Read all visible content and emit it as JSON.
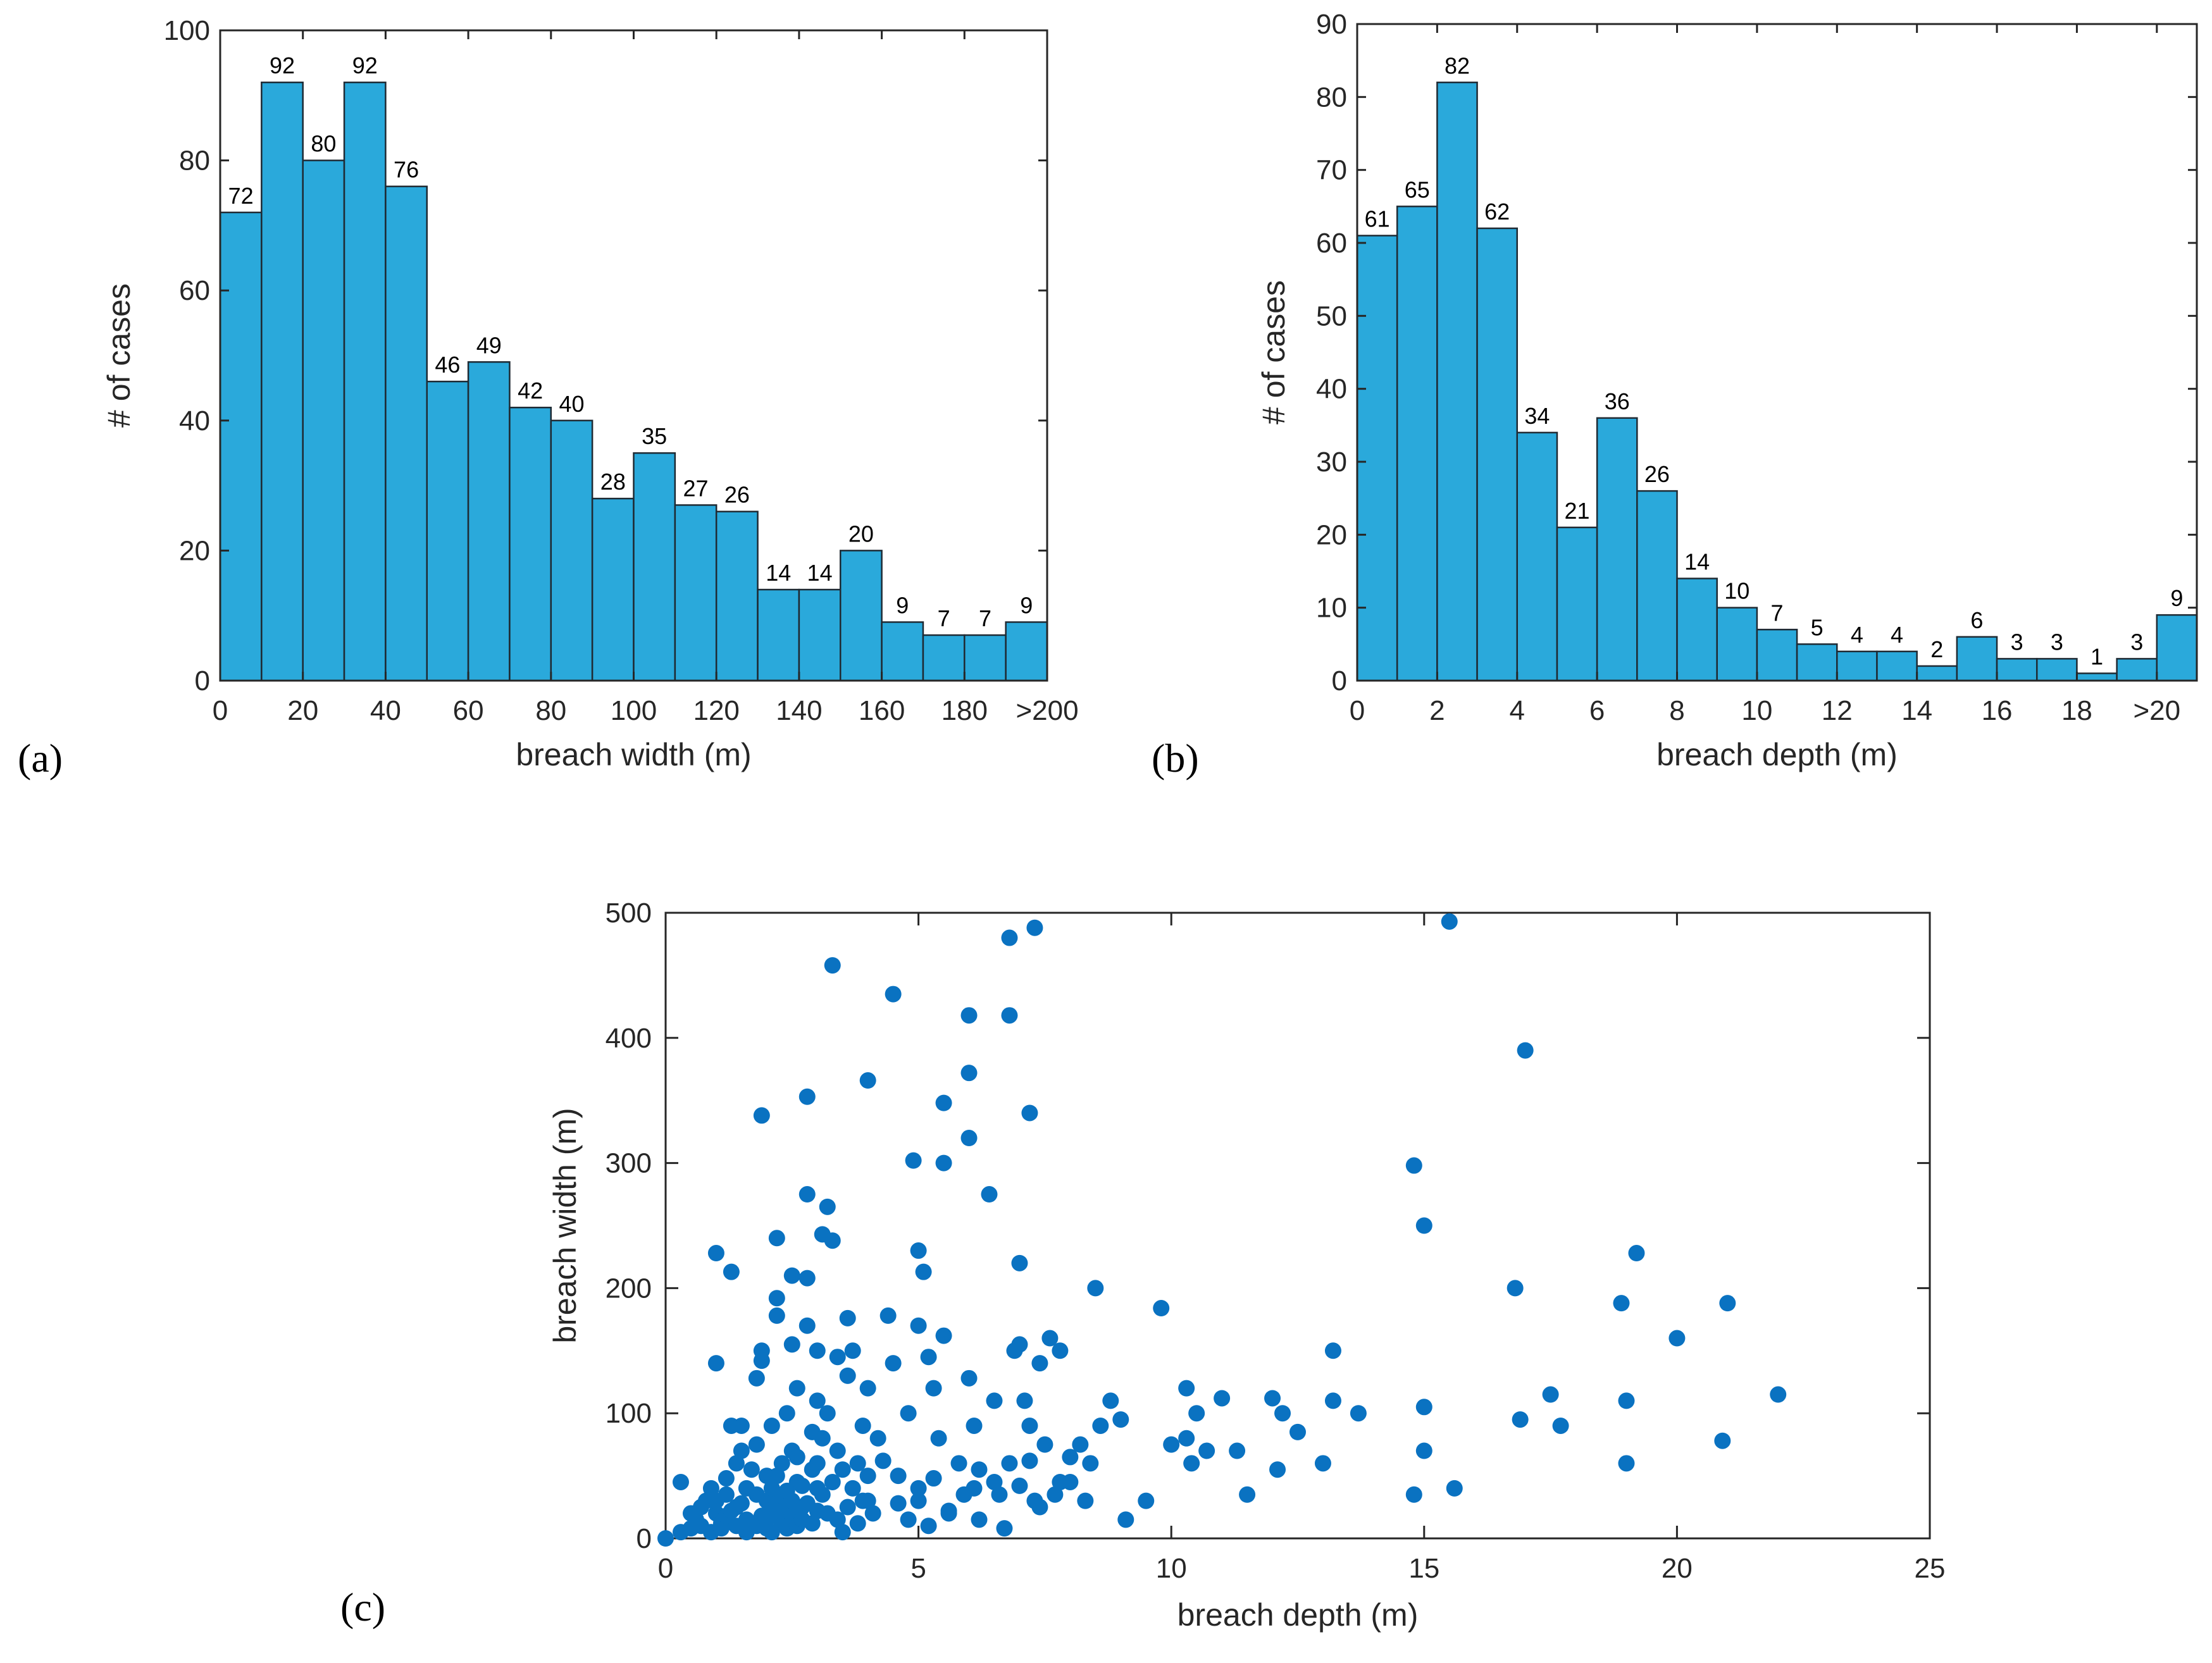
{
  "colors": {
    "bar_fill": "#2aa9db",
    "point_fill": "#0a72c1",
    "axis": "#262626"
  },
  "chart_data": [
    {
      "type": "bar",
      "panel_label": "(a)",
      "xlabel": "breach width (m)",
      "ylabel": "# of cases",
      "ylim": [
        0,
        100
      ],
      "yticks": [
        0,
        20,
        40,
        60,
        80,
        100
      ],
      "xtick_labels": [
        "0",
        "20",
        "40",
        "60",
        "80",
        "100",
        "120",
        "140",
        "160",
        "180",
        ">200"
      ],
      "bins": [
        "0-10",
        "10-20",
        "20-30",
        "30-40",
        "40-50",
        "50-60",
        "60-70",
        "70-80",
        "80-90",
        "90-100",
        "100-110",
        "110-120",
        "120-130",
        "130-140",
        "140-150",
        "150-160",
        "160-170",
        "170-180",
        "180-190",
        ">200"
      ],
      "values": [
        72,
        92,
        80,
        92,
        76,
        46,
        49,
        42,
        40,
        28,
        35,
        27,
        26,
        14,
        14,
        20,
        9,
        7,
        7,
        9
      ],
      "value_labels": [
        "72",
        "92",
        "80",
        "92",
        "76",
        "46",
        "49",
        "42",
        "40",
        "28",
        "35",
        "27",
        "26",
        "14",
        "14",
        "20",
        "9",
        "7",
        "7",
        "9"
      ]
    },
    {
      "type": "bar",
      "panel_label": "(b)",
      "xlabel": "breach depth (m)",
      "ylabel": "# of cases",
      "ylim": [
        0,
        90
      ],
      "yticks": [
        0,
        10,
        20,
        30,
        40,
        50,
        60,
        70,
        80,
        90
      ],
      "xtick_labels": [
        "0",
        "2",
        "4",
        "6",
        "8",
        "10",
        "12",
        "14",
        "16",
        "18",
        ">20"
      ],
      "bins": [
        "0-1",
        "1-2",
        "2-3",
        "3-4",
        "4-5",
        "5-6",
        "6-7",
        "7-8",
        "8-9",
        "9-10",
        "10-11",
        "11-12",
        "12-13",
        "13-14",
        "14-15",
        "15-16",
        "16-17",
        "17-18",
        "18-19",
        "19-20",
        ">20"
      ],
      "values": [
        61,
        65,
        82,
        62,
        34,
        21,
        36,
        26,
        14,
        10,
        7,
        5,
        4,
        4,
        2,
        6,
        3,
        3,
        1,
        3,
        9
      ],
      "value_labels": [
        "61",
        "65",
        "82",
        "62",
        "34",
        "21",
        "36",
        "26",
        "14",
        "10",
        "7",
        "5",
        "4",
        "4",
        "2",
        "6",
        "3",
        "3",
        "1",
        "3",
        "9"
      ]
    },
    {
      "type": "scatter",
      "panel_label": "(c)",
      "xlabel": "breach depth (m)",
      "ylabel": "breach width (m)",
      "xlim": [
        0,
        25
      ],
      "ylim": [
        0,
        500
      ],
      "xticks": [
        0,
        5,
        10,
        15,
        20,
        25
      ],
      "yticks": [
        0,
        100,
        200,
        300,
        400,
        500
      ],
      "points": [
        [
          0,
          0
        ],
        [
          0.3,
          45
        ],
        [
          0.3,
          5
        ],
        [
          0.5,
          8
        ],
        [
          0.6,
          15
        ],
        [
          0.7,
          10
        ],
        [
          0.8,
          30
        ],
        [
          0.9,
          5
        ],
        [
          1.0,
          228
        ],
        [
          1.0,
          140
        ],
        [
          1.0,
          20
        ],
        [
          1.1,
          12
        ],
        [
          1.2,
          35
        ],
        [
          1.2,
          48
        ],
        [
          1.3,
          213
        ],
        [
          1.3,
          90
        ],
        [
          1.4,
          25
        ],
        [
          1.4,
          60
        ],
        [
          1.5,
          70
        ],
        [
          1.5,
          90
        ],
        [
          1.6,
          15
        ],
        [
          1.6,
          40
        ],
        [
          1.7,
          55
        ],
        [
          1.8,
          128
        ],
        [
          1.8,
          75
        ],
        [
          1.8,
          10
        ],
        [
          1.9,
          338
        ],
        [
          1.9,
          150
        ],
        [
          1.9,
          142
        ],
        [
          2.0,
          30
        ],
        [
          2.0,
          50
        ],
        [
          2.1,
          20
        ],
        [
          2.1,
          90
        ],
        [
          2.2,
          240
        ],
        [
          2.2,
          192
        ],
        [
          2.2,
          178
        ],
        [
          2.3,
          60
        ],
        [
          2.3,
          35
        ],
        [
          2.4,
          100
        ],
        [
          2.4,
          15
        ],
        [
          2.5,
          155
        ],
        [
          2.5,
          210
        ],
        [
          2.5,
          70
        ],
        [
          2.6,
          45
        ],
        [
          2.6,
          120
        ],
        [
          2.7,
          25
        ],
        [
          2.8,
          353
        ],
        [
          2.8,
          208
        ],
        [
          2.8,
          170
        ],
        [
          2.8,
          275
        ],
        [
          2.9,
          85
        ],
        [
          2.9,
          55
        ],
        [
          3.0,
          150
        ],
        [
          3.0,
          110
        ],
        [
          3.0,
          40
        ],
        [
          3.1,
          243
        ],
        [
          3.2,
          265
        ],
        [
          3.2,
          100
        ],
        [
          3.2,
          20
        ],
        [
          3.3,
          458
        ],
        [
          3.3,
          238
        ],
        [
          3.4,
          145
        ],
        [
          3.4,
          70
        ],
        [
          3.5,
          5
        ],
        [
          3.6,
          176
        ],
        [
          3.6,
          130
        ],
        [
          3.7,
          150
        ],
        [
          3.8,
          60
        ],
        [
          3.9,
          90
        ],
        [
          4.0,
          366
        ],
        [
          4.0,
          120
        ],
        [
          4.0,
          30
        ],
        [
          4.2,
          80
        ],
        [
          4.4,
          178
        ],
        [
          4.5,
          435
        ],
        [
          4.5,
          140
        ],
        [
          4.6,
          50
        ],
        [
          4.8,
          100
        ],
        [
          4.9,
          302
        ],
        [
          5.0,
          230
        ],
        [
          5.0,
          170
        ],
        [
          5.0,
          40
        ],
        [
          5.1,
          213
        ],
        [
          5.2,
          145
        ],
        [
          5.2,
          10
        ],
        [
          5.3,
          120
        ],
        [
          5.4,
          80
        ],
        [
          5.5,
          348
        ],
        [
          5.5,
          300
        ],
        [
          5.5,
          162
        ],
        [
          5.6,
          20
        ],
        [
          5.8,
          60
        ],
        [
          6.0,
          418
        ],
        [
          6.0,
          372
        ],
        [
          6.0,
          320
        ],
        [
          6.0,
          128
        ],
        [
          6.1,
          90
        ],
        [
          6.1,
          40
        ],
        [
          6.2,
          15
        ],
        [
          6.4,
          275
        ],
        [
          6.5,
          110
        ],
        [
          6.6,
          35
        ],
        [
          6.8,
          480
        ],
        [
          6.8,
          418
        ],
        [
          6.8,
          60
        ],
        [
          6.9,
          150
        ],
        [
          7.0,
          220
        ],
        [
          7.0,
          155
        ],
        [
          7.1,
          110
        ],
        [
          7.2,
          340
        ],
        [
          7.2,
          90
        ],
        [
          7.3,
          488
        ],
        [
          7.3,
          30
        ],
        [
          7.4,
          140
        ],
        [
          7.5,
          75
        ],
        [
          7.6,
          160
        ],
        [
          7.8,
          150
        ],
        [
          7.8,
          45
        ],
        [
          8.0,
          65
        ],
        [
          8.2,
          75
        ],
        [
          8.4,
          60
        ],
        [
          8.5,
          200
        ],
        [
          8.6,
          90
        ],
        [
          8.8,
          110
        ],
        [
          9.0,
          95
        ],
        [
          9.1,
          15
        ],
        [
          9.5,
          30
        ],
        [
          9.8,
          184
        ],
        [
          10.0,
          75
        ],
        [
          10.3,
          80
        ],
        [
          10.3,
          120
        ],
        [
          10.4,
          60
        ],
        [
          10.5,
          100
        ],
        [
          10.7,
          70
        ],
        [
          11.0,
          112
        ],
        [
          11.3,
          70
        ],
        [
          11.5,
          35
        ],
        [
          12.0,
          112
        ],
        [
          12.1,
          55
        ],
        [
          12.2,
          100
        ],
        [
          12.5,
          85
        ],
        [
          13.0,
          60
        ],
        [
          13.2,
          110
        ],
        [
          13.2,
          150
        ],
        [
          13.7,
          100
        ],
        [
          14.8,
          298
        ],
        [
          14.8,
          35
        ],
        [
          15.0,
          250
        ],
        [
          15.0,
          105
        ],
        [
          15.0,
          70
        ],
        [
          15.5,
          493
        ],
        [
          15.6,
          40
        ],
        [
          16.8,
          200
        ],
        [
          16.9,
          95
        ],
        [
          17.0,
          390
        ],
        [
          17.5,
          115
        ],
        [
          17.7,
          90
        ],
        [
          18.9,
          188
        ],
        [
          19.0,
          110
        ],
        [
          19.0,
          60
        ],
        [
          19.2,
          228
        ],
        [
          20.0,
          160
        ],
        [
          20.9,
          78
        ],
        [
          21.0,
          188
        ],
        [
          22.0,
          115
        ],
        [
          0.5,
          20
        ],
        [
          0.7,
          25
        ],
        [
          0.9,
          40
        ],
        [
          1.0,
          30
        ],
        [
          1.1,
          8
        ],
        [
          1.2,
          18
        ],
        [
          1.3,
          22
        ],
        [
          1.4,
          10
        ],
        [
          1.5,
          28
        ],
        [
          1.6,
          5
        ],
        [
          1.7,
          12
        ],
        [
          1.8,
          35
        ],
        [
          1.9,
          18
        ],
        [
          2.0,
          8
        ],
        [
          2.0,
          15
        ],
        [
          2.1,
          40
        ],
        [
          2.1,
          5
        ],
        [
          2.2,
          28
        ],
        [
          2.2,
          50
        ],
        [
          2.3,
          12
        ],
        [
          2.3,
          22
        ],
        [
          2.4,
          8
        ],
        [
          2.4,
          38
        ],
        [
          2.5,
          18
        ],
        [
          2.5,
          30
        ],
        [
          2.6,
          10
        ],
        [
          2.6,
          65
        ],
        [
          2.7,
          42
        ],
        [
          2.7,
          15
        ],
        [
          2.8,
          28
        ],
        [
          2.9,
          12
        ],
        [
          3.0,
          60
        ],
        [
          3.0,
          22
        ],
        [
          3.1,
          35
        ],
        [
          3.1,
          80
        ],
        [
          3.3,
          45
        ],
        [
          3.4,
          15
        ],
        [
          3.5,
          55
        ],
        [
          3.6,
          25
        ],
        [
          3.7,
          40
        ],
        [
          3.8,
          12
        ],
        [
          3.9,
          30
        ],
        [
          4.0,
          50
        ],
        [
          4.1,
          20
        ],
        [
          4.3,
          62
        ],
        [
          4.6,
          28
        ],
        [
          4.8,
          15
        ],
        [
          5.0,
          30
        ],
        [
          5.3,
          48
        ],
        [
          5.6,
          22
        ],
        [
          5.9,
          35
        ],
        [
          6.2,
          55
        ],
        [
          6.5,
          45
        ],
        [
          6.7,
          8
        ],
        [
          7.0,
          42
        ],
        [
          7.2,
          62
        ],
        [
          7.4,
          25
        ],
        [
          7.7,
          35
        ],
        [
          8.0,
          45
        ],
        [
          8.3,
          30
        ]
      ]
    }
  ]
}
